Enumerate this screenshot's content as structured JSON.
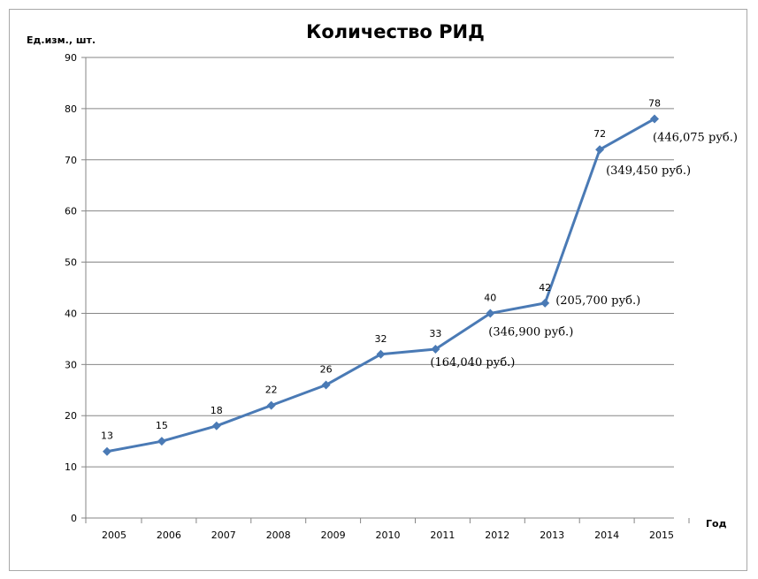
{
  "chart_data": {
    "type": "line",
    "title": "Количество РИД",
    "ylabel": "Ед.изм., шт.",
    "xlabel": "Год",
    "ylim": [
      0,
      90
    ],
    "yticks": [
      "0",
      "10",
      "20",
      "30",
      "40",
      "50",
      "60",
      "70",
      "80",
      "90"
    ],
    "categories": [
      "2005",
      "2006",
      "2007",
      "2008",
      "2009",
      "2010",
      "2011",
      "2012",
      "2013",
      "2014",
      "2015"
    ],
    "x": [
      2005,
      2006,
      2007,
      2008,
      2009,
      2010,
      2011,
      2012,
      2013,
      2014,
      2015
    ],
    "series": [
      {
        "values": [
          13,
          15,
          18,
          22,
          26,
          32,
          33,
          40,
          42,
          72,
          78
        ],
        "labels": [
          "13",
          "15",
          "18",
          "22",
          "26",
          "32",
          "33",
          "40",
          "42",
          "72",
          "78"
        ],
        "color": "#4a7ab5"
      }
    ],
    "annotations": [
      {
        "x": 2011,
        "text": "(164,040 руб.)"
      },
      {
        "x": 2012,
        "text": "(346,900 руб.)"
      },
      {
        "x": 2013,
        "text": "(205,700 руб.)"
      },
      {
        "x": 2014,
        "text": "(349,450 руб.)"
      },
      {
        "x": 2015,
        "text": "(446,075 руб.)"
      }
    ],
    "grid": true,
    "legend": "none"
  }
}
